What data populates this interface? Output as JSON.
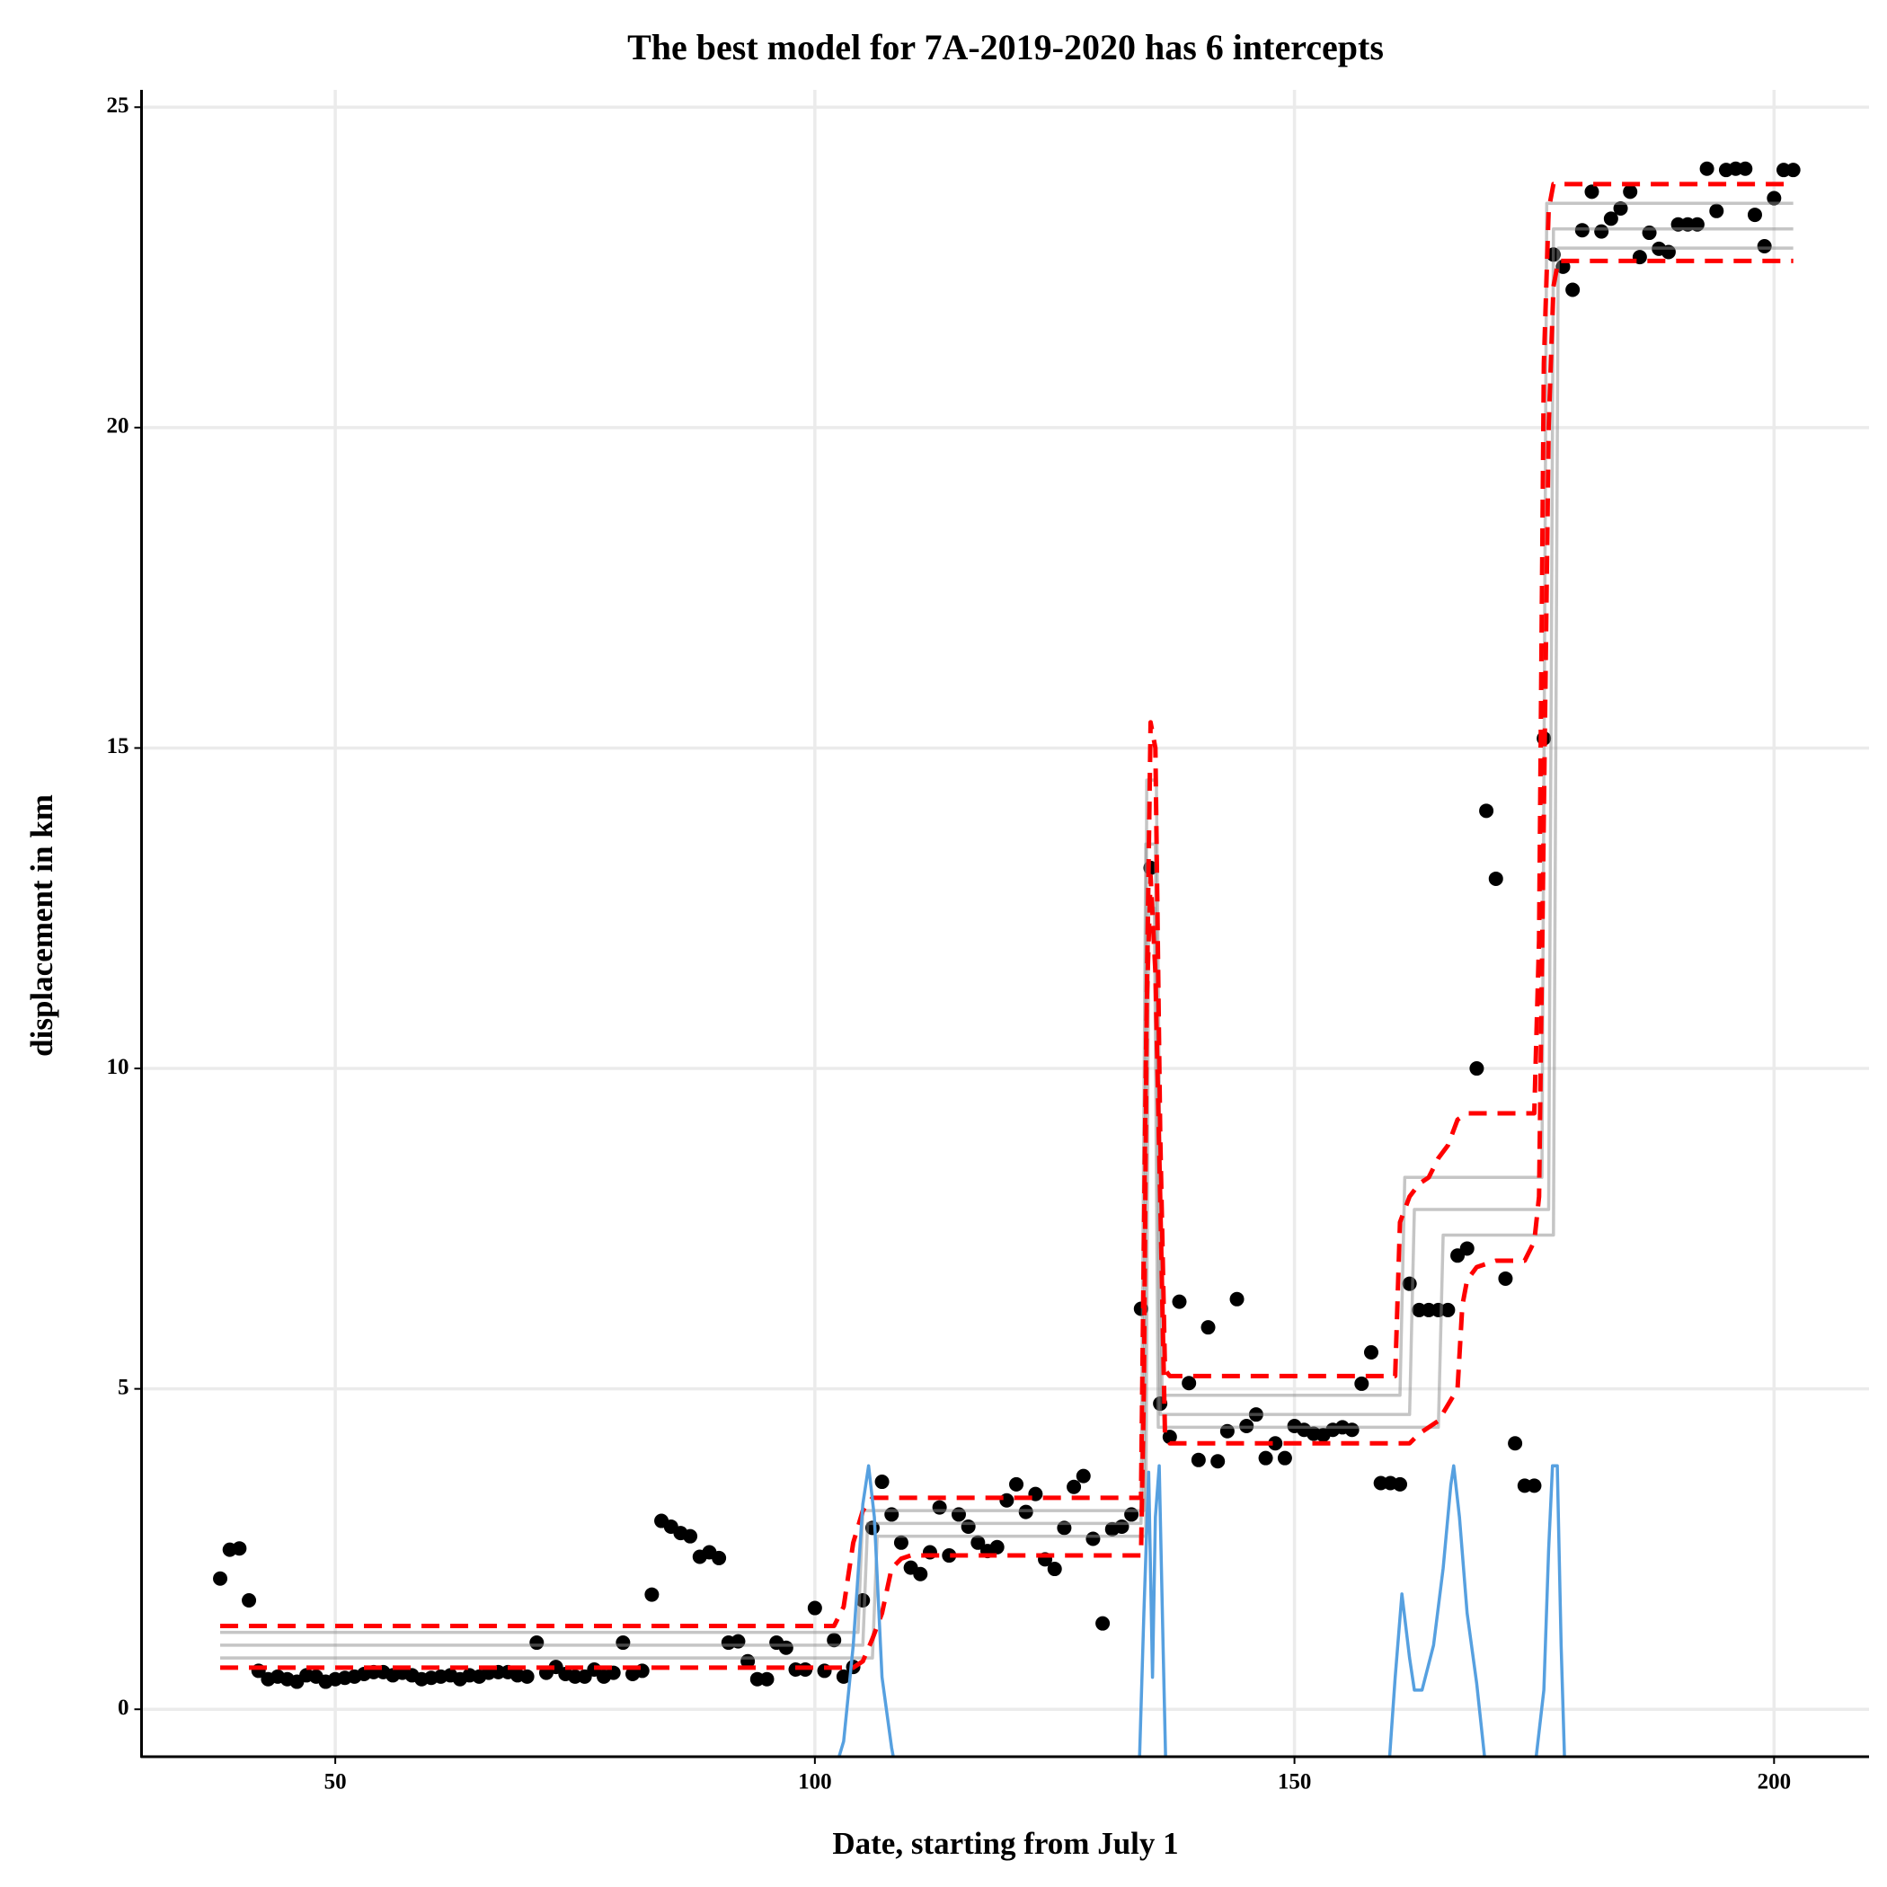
{
  "chart_data": {
    "type": "scatter",
    "title": "The best model for 7A-2019-2020 has 6 intercepts",
    "x_label": "Date, starting from July 1",
    "y_label": "displacement in km",
    "xlim": [
      29.8,
      209.9
    ],
    "ylim": [
      -0.74,
      25.2
    ],
    "xticks": [
      50,
      100,
      150,
      200
    ],
    "yticks": [
      0,
      5,
      10,
      15,
      20,
      25
    ],
    "grid": true,
    "series": [
      {
        "type": "scatter",
        "color": "#000000",
        "x": [
          38,
          39,
          40,
          41,
          42,
          43,
          44,
          45,
          46,
          47,
          48,
          49,
          50,
          51,
          52,
          53,
          54,
          55,
          56,
          57,
          58,
          59,
          60,
          61,
          62,
          63,
          64,
          65,
          66,
          67,
          68,
          69,
          70,
          71,
          72,
          73,
          74,
          75,
          76,
          77,
          78,
          79,
          80,
          81,
          82,
          83,
          84,
          85,
          86,
          87,
          88,
          89,
          90,
          91,
          92,
          93,
          94,
          95,
          96,
          97,
          98,
          99,
          100,
          101,
          102,
          103,
          104,
          105,
          106,
          107,
          108,
          109,
          110,
          111,
          112,
          113,
          114,
          115,
          116,
          117,
          118,
          119,
          120,
          121,
          122,
          123,
          124,
          125,
          126,
          127,
          128,
          129,
          130,
          131,
          132,
          133,
          134,
          135,
          136,
          137,
          138,
          139,
          140,
          141,
          142,
          143,
          144,
          145,
          146,
          147,
          148,
          149,
          150,
          151,
          152,
          153,
          154,
          155,
          156,
          157,
          158,
          159,
          160,
          161,
          162,
          163,
          164,
          165,
          166,
          167,
          168,
          169,
          170,
          171,
          172,
          173,
          174,
          175,
          176,
          177,
          178,
          179,
          180,
          181,
          182,
          183,
          184,
          185,
          186,
          187,
          188,
          189,
          190,
          191,
          192,
          193,
          194,
          195,
          196,
          197,
          198,
          199,
          200,
          201,
          202
        ],
        "values": [
          2.04,
          2.49,
          2.51,
          1.7,
          0.6,
          0.47,
          0.51,
          0.47,
          0.43,
          0.53,
          0.51,
          0.43,
          0.47,
          0.49,
          0.51,
          0.55,
          0.58,
          0.58,
          0.53,
          0.57,
          0.53,
          0.47,
          0.49,
          0.51,
          0.53,
          0.47,
          0.53,
          0.51,
          0.57,
          0.58,
          0.58,
          0.53,
          0.51,
          1.04,
          0.57,
          0.66,
          0.55,
          0.51,
          0.51,
          0.62,
          0.51,
          0.57,
          1.04,
          0.55,
          0.6,
          1.79,
          2.94,
          2.85,
          2.75,
          2.7,
          2.38,
          2.45,
          2.36,
          1.04,
          1.06,
          0.75,
          0.47,
          0.47,
          1.04,
          0.96,
          0.62,
          0.62,
          1.58,
          0.6,
          1.08,
          0.51,
          0.66,
          1.7,
          2.83,
          3.55,
          3.04,
          2.6,
          2.21,
          2.11,
          2.45,
          3.15,
          2.4,
          3.04,
          2.85,
          2.6,
          2.47,
          2.53,
          3.26,
          3.51,
          3.08,
          3.36,
          2.34,
          2.19,
          2.83,
          3.47,
          3.64,
          2.66,
          1.34,
          2.81,
          2.85,
          3.04,
          6.25,
          13.13,
          4.77,
          4.25,
          6.36,
          5.09,
          3.89,
          5.96,
          3.87,
          4.34,
          6.4,
          4.42,
          4.6,
          3.92,
          4.15,
          3.92,
          4.42,
          4.36,
          4.3,
          4.28,
          4.36,
          4.4,
          4.36,
          5.08,
          5.57,
          3.53,
          3.53,
          3.51,
          6.64,
          6.23,
          6.23,
          6.23,
          6.23,
          7.08,
          7.19,
          10.0,
          14.02,
          12.96,
          6.72,
          4.15,
          3.49,
          3.49,
          15.15,
          22.7,
          22.51,
          22.15,
          23.08,
          23.68,
          23.06,
          23.26,
          23.42,
          23.68,
          22.66,
          23.04,
          22.79,
          22.74,
          23.17,
          23.17,
          23.17,
          24.04,
          23.38,
          24.02,
          24.04,
          24.04,
          23.32,
          22.83,
          23.58,
          24.02,
          24.02
        ]
      },
      {
        "type": "line",
        "color": "#8c8c8c",
        "x": [
          38,
          105,
          105.5,
          134,
          134.5,
          135.5,
          136,
          162,
          162.5,
          176.5,
          177,
          202
        ],
        "values": [
          1.0,
          1.0,
          2.9,
          2.9,
          13.5,
          13.5,
          4.6,
          4.6,
          7.8,
          7.8,
          23.1,
          23.1
        ]
      },
      {
        "type": "line",
        "color": "#8c8c8c",
        "x": [
          38,
          104.5,
          105,
          134.3,
          134.6,
          135.6,
          136.2,
          161,
          161.5,
          175.8,
          176.3,
          202
        ],
        "values": [
          1.2,
          1.2,
          3.1,
          3.1,
          14.5,
          14.5,
          4.9,
          4.9,
          8.3,
          8.3,
          23.5,
          23.5
        ]
      },
      {
        "type": "line",
        "color": "#8c8c8c",
        "x": [
          38,
          106,
          106.5,
          134.5,
          134.8,
          135.4,
          135.8,
          165,
          165.5,
          177,
          177.5,
          202
        ],
        "values": [
          0.8,
          0.8,
          2.7,
          2.7,
          12.5,
          12.5,
          4.4,
          4.4,
          7.4,
          7.4,
          22.8,
          22.8
        ]
      },
      {
        "type": "line",
        "color": "#ff0000",
        "dashed": true,
        "x": [
          38,
          102,
          103,
          104,
          105,
          106,
          134,
          134.5,
          135,
          135.5,
          136,
          136.5,
          137,
          160.5,
          161,
          162,
          163,
          164,
          165,
          166,
          167,
          168,
          175,
          175.5,
          176,
          176.5,
          177,
          202
        ],
        "values": [
          1.3,
          1.3,
          1.6,
          2.6,
          3.1,
          3.3,
          3.3,
          10,
          15.4,
          15,
          9,
          5.3,
          5.2,
          5.2,
          7.6,
          8.0,
          8.2,
          8.3,
          8.6,
          8.8,
          9.2,
          9.3,
          9.3,
          12,
          21,
          23.4,
          23.8,
          23.8
        ]
      },
      {
        "type": "line",
        "color": "#ff0000",
        "dashed": true,
        "x": [
          38,
          104,
          105,
          106,
          107,
          108,
          109,
          110,
          134,
          134.3,
          134.6,
          135,
          135.5,
          136,
          136.5,
          137,
          162,
          163,
          165,
          167,
          167.5,
          168,
          169,
          171,
          174,
          175,
          175.5,
          176,
          176.5,
          177,
          177.5,
          202
        ],
        "values": [
          0.65,
          0.65,
          0.75,
          1.1,
          1.5,
          2.2,
          2.35,
          2.4,
          2.4,
          5,
          11,
          13,
          11.5,
          8,
          4.3,
          4.15,
          4.15,
          4.3,
          4.5,
          5.0,
          6.3,
          6.7,
          6.9,
          7.0,
          7.0,
          7.3,
          8,
          14,
          20,
          22.2,
          22.6,
          22.6
        ]
      },
      {
        "type": "line",
        "color": "#56a0e0",
        "x": [
          102,
          103,
          104,
          105,
          105.6,
          106.2,
          107,
          108,
          108.5,
          null,
          133.8,
          134.3,
          134.8,
          135.2,
          135.5,
          135.9,
          136.3,
          136.6,
          null,
          159.8,
          160.5,
          161.2,
          162,
          162.5,
          163.3,
          164.5,
          165.5,
          166.3,
          166.6,
          167.2,
          168,
          169,
          170,
          null,
          175,
          176,
          176.5,
          176.9,
          177.4,
          177.8,
          178.2
        ],
        "values": [
          -1,
          -0.5,
          1.0,
          3.2,
          3.8,
          3.0,
          0.5,
          -0.6,
          -1,
          null,
          -1,
          1.5,
          3.7,
          0.5,
          3.0,
          3.8,
          1.0,
          -1,
          null,
          -1,
          0.5,
          1.8,
          0.8,
          0.3,
          0.3,
          1.0,
          2.2,
          3.5,
          3.8,
          3.0,
          1.5,
          0.4,
          -1,
          null,
          -1,
          0.3,
          2.5,
          3.8,
          3.8,
          1.0,
          -1
        ]
      }
    ]
  }
}
